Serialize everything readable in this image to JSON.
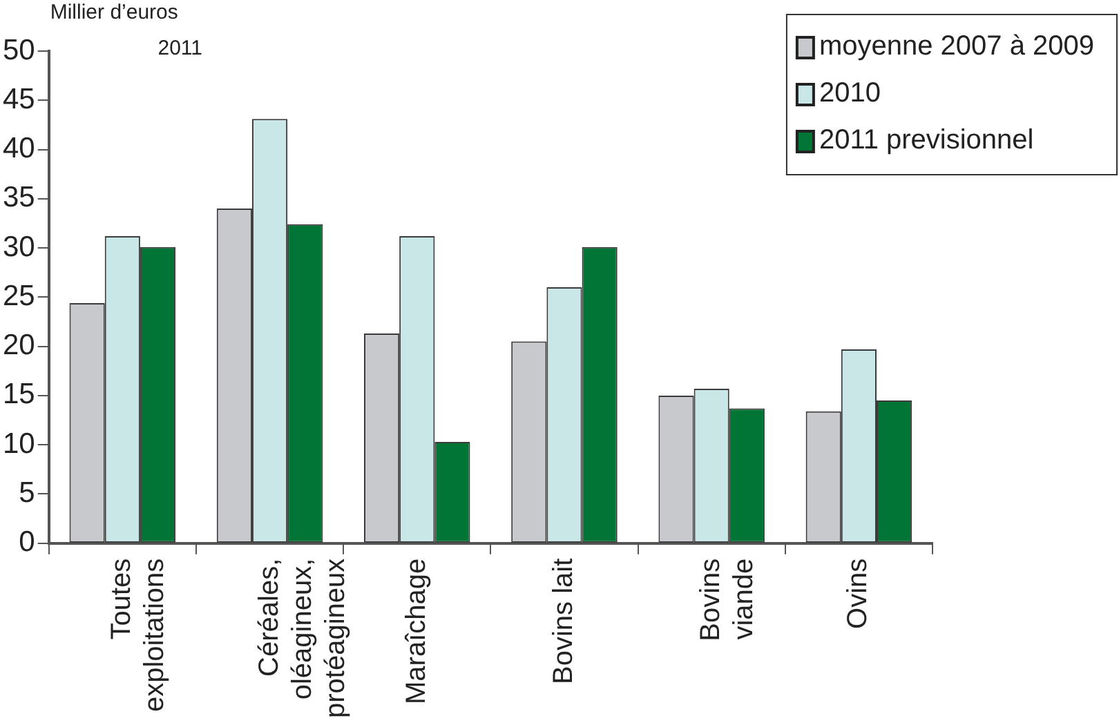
{
  "chart_data": {
    "type": "bar",
    "ylabel": "Millier d’euros",
    "subtitle": "2011",
    "categories": [
      "Toutes\nexploitations",
      "Céréales,\noléagineux,\nprotéagineux",
      "Maraîchage",
      "Bovins lait",
      "Bovins\nviande",
      "Ovins"
    ],
    "series": [
      {
        "name": "moyenne 2007 à 2009",
        "color": "#c8c9cc",
        "values": [
          24.4,
          34.0,
          21.3,
          20.5,
          15.0,
          13.4
        ]
      },
      {
        "name": "2010",
        "color": "#c9e7e6",
        "values": [
          31.2,
          43.1,
          31.2,
          26.0,
          15.7,
          19.7
        ]
      },
      {
        "name": "2011 previsionnel",
        "color": "#007535",
        "values": [
          30.1,
          32.4,
          10.3,
          30.1,
          13.7,
          14.5
        ]
      }
    ],
    "ylim": [
      0,
      50
    ],
    "yticks": [
      0,
      5,
      10,
      15,
      20,
      25,
      30,
      35,
      40,
      45,
      50
    ],
    "grid": false,
    "legend": "top right"
  }
}
